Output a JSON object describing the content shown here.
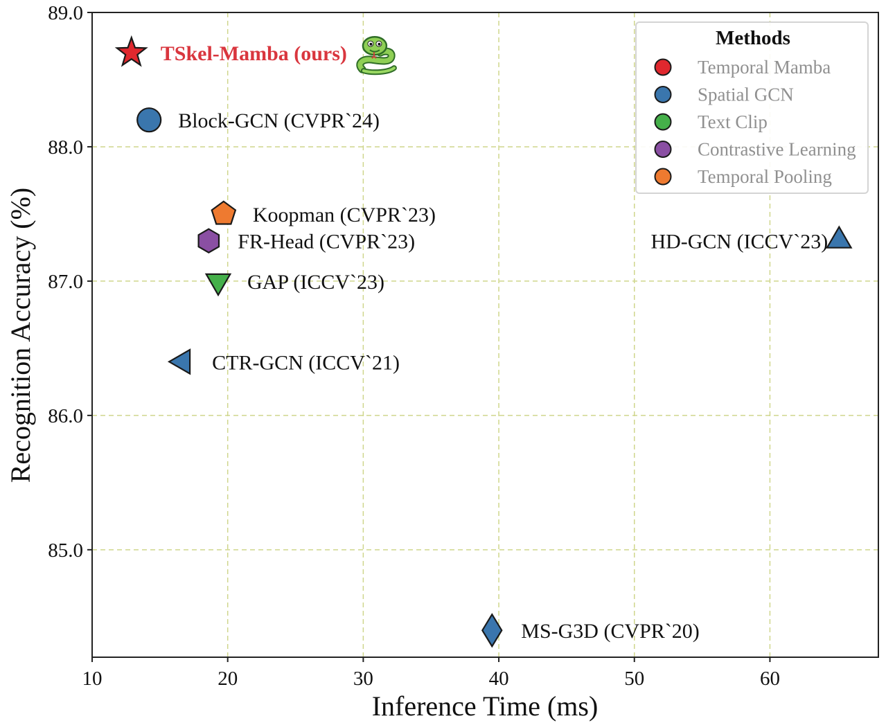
{
  "chart_data": {
    "type": "scatter",
    "title": "",
    "xlabel": "Inference Time (ms)",
    "ylabel": "Recognition Accuracy (%)",
    "xlim": [
      10,
      68
    ],
    "ylim": [
      84.2,
      89.0
    ],
    "x_ticks": [
      10,
      20,
      30,
      40,
      50,
      60
    ],
    "y_ticks": [
      85.0,
      86.0,
      87.0,
      88.0,
      89.0
    ],
    "y_tick_labels": [
      "85.0",
      "86.0",
      "87.0",
      "88.0",
      "89.0"
    ],
    "grid": true,
    "legend": {
      "title": "Methods",
      "placement": "top-right",
      "entries": [
        {
          "label": "Temporal Mamba",
          "color": "#e0282e"
        },
        {
          "label": "Spatial GCN",
          "color": "#3a76ad"
        },
        {
          "label": "Text Clip",
          "color": "#45b04a"
        },
        {
          "label": "Contrastive Learning",
          "color": "#8a4fa3"
        },
        {
          "label": "Temporal Pooling",
          "color": "#ee7a30"
        }
      ]
    },
    "points": [
      {
        "label": "TSkel-Mamba (ours)",
        "x": 12.9,
        "y": 88.7,
        "marker": "star",
        "color": "#e0282e",
        "highlight": true,
        "label_color": "#d9363e",
        "icon": "snake"
      },
      {
        "label": "Block-GCN (CVPR`24)",
        "x": 14.2,
        "y": 88.2,
        "marker": "circle",
        "color": "#3a76ad"
      },
      {
        "label": "Koopman (CVPR`23)",
        "x": 19.7,
        "y": 87.5,
        "marker": "pentagon",
        "color": "#ee7a30"
      },
      {
        "label": "FR-Head (CVPR`23)",
        "x": 18.6,
        "y": 87.3,
        "marker": "hexagon",
        "color": "#8a4fa3"
      },
      {
        "label": "GAP (ICCV`23)",
        "x": 19.3,
        "y": 87.0,
        "marker": "triangle-down",
        "color": "#45b04a"
      },
      {
        "label": "CTR-GCN (ICCV`21)",
        "x": 16.7,
        "y": 86.4,
        "marker": "triangle-left",
        "color": "#3a76ad"
      },
      {
        "label": "HD-GCN (ICCV`23)",
        "x": 65.1,
        "y": 87.3,
        "marker": "triangle-up",
        "color": "#3a76ad",
        "label_side": "left"
      },
      {
        "label": "MS-G3D (CVPR`20)",
        "x": 39.5,
        "y": 84.4,
        "marker": "diamond",
        "color": "#3a76ad"
      }
    ]
  }
}
